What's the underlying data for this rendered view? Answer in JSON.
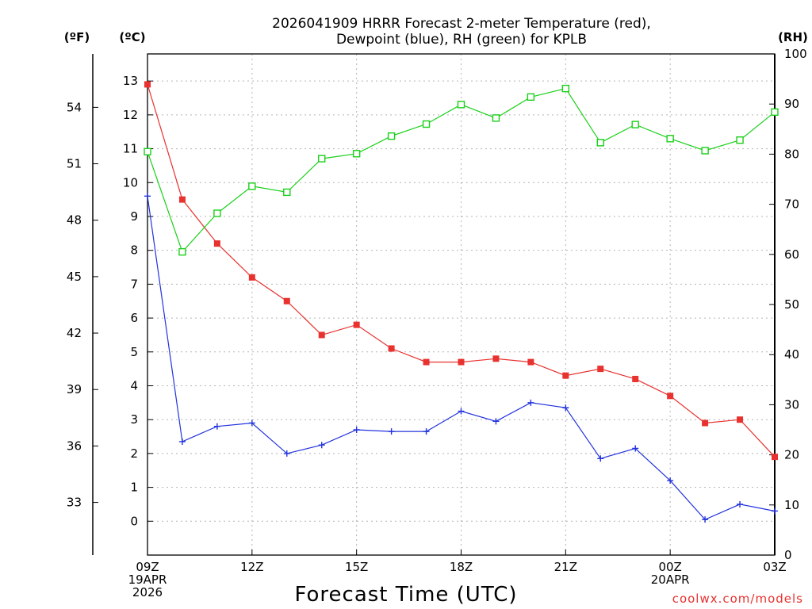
{
  "chart_data": {
    "type": "line",
    "title_line1": "2026041909 HRRR Forecast 2-meter Temperature (red),",
    "title_line2": "Dewpoint (blue), RH (green) for KPLB",
    "xlabel": "Forecast Time (UTC)",
    "credit": "coolwx.com/models",
    "unit_f": "(ºF)",
    "unit_c": "(ºC)",
    "unit_rh": "(RH)",
    "hours": [
      0,
      1,
      2,
      3,
      4,
      5,
      6,
      7,
      8,
      9,
      10,
      11,
      12,
      13,
      14,
      15,
      16,
      17,
      18
    ],
    "x_ticks": [
      {
        "hour": 0,
        "lines": [
          "09Z",
          "19APR",
          "2026"
        ]
      },
      {
        "hour": 3,
        "lines": [
          "12Z"
        ]
      },
      {
        "hour": 6,
        "lines": [
          "15Z"
        ]
      },
      {
        "hour": 9,
        "lines": [
          "18Z"
        ]
      },
      {
        "hour": 12,
        "lines": [
          "21Z"
        ]
      },
      {
        "hour": 15,
        "lines": [
          "00Z",
          "20APR"
        ]
      },
      {
        "hour": 18,
        "lines": [
          "03Z"
        ]
      }
    ],
    "celsius_axis": {
      "ylim": [
        -1,
        13.8
      ],
      "ticks": [
        0,
        1,
        2,
        3,
        4,
        5,
        6,
        7,
        8,
        9,
        10,
        11,
        12,
        13
      ]
    },
    "fahrenheit_axis": {
      "ticks": [
        33,
        36,
        39,
        42,
        45,
        48,
        51,
        54
      ]
    },
    "rh_axis": {
      "ylim": [
        0,
        100
      ],
      "ticks": [
        0,
        10,
        20,
        30,
        40,
        50,
        60,
        70,
        80,
        90,
        100
      ]
    },
    "series": [
      {
        "name": "Temperature",
        "unit": "C",
        "color": "#e8322f",
        "marker": "filled-square",
        "values": [
          12.9,
          9.5,
          8.2,
          7.2,
          6.5,
          5.5,
          5.8,
          5.1,
          4.7,
          4.7,
          4.8,
          4.7,
          4.3,
          4.5,
          4.2,
          3.7,
          2.9,
          3.0,
          1.9
        ]
      },
      {
        "name": "Dewpoint",
        "unit": "C",
        "color": "#2233dd",
        "marker": "plus",
        "values": [
          9.6,
          2.35,
          2.8,
          2.9,
          2.0,
          2.25,
          2.7,
          2.65,
          2.65,
          3.25,
          2.95,
          3.5,
          3.35,
          1.85,
          2.15,
          1.2,
          0.05,
          0.5,
          0.3
        ]
      },
      {
        "name": "RH",
        "unit": "%",
        "color": "#19d019",
        "marker": "open-square",
        "values": [
          80.5,
          60.5,
          68.2,
          73.6,
          72.4,
          79.1,
          80.1,
          83.6,
          86.0,
          89.9,
          87.2,
          91.4,
          93.1,
          82.3,
          85.9,
          83.1,
          80.7,
          82.8,
          88.4
        ]
      }
    ],
    "grid": true
  }
}
